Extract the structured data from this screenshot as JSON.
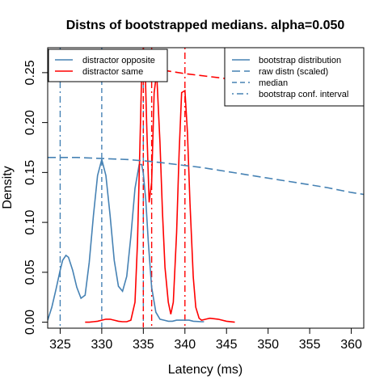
{
  "chart_data": {
    "type": "line",
    "title": "Distns of bootstrapped medians. alpha=0.050",
    "xlabel": "Latency (ms)",
    "ylabel": "Density",
    "xlim": [
      323.5,
      361.5
    ],
    "ylim": [
      -0.006,
      0.275
    ],
    "xticks": [
      "325",
      "330",
      "335",
      "340",
      "345",
      "350",
      "355",
      "360"
    ],
    "yticks": [
      "0.00",
      "0.05",
      "0.10",
      "0.15",
      "0.20",
      "0.25"
    ],
    "colors": {
      "opposite": "#4682b4",
      "same": "#ff0000"
    },
    "legend_groups": {
      "position": "top-left",
      "entries": [
        {
          "label": "distractor opposite",
          "color": "#4682b4"
        },
        {
          "label": "distractor same",
          "color": "#ff0000"
        }
      ]
    },
    "legend_styles": {
      "position": "top-right",
      "entries": [
        {
          "label": "bootstrap distribution",
          "style": "solid"
        },
        {
          "label": "raw distn (scaled)",
          "style": "longdash"
        },
        {
          "label": "median",
          "style": "dashed"
        },
        {
          "label": "bootstrap conf. interval",
          "style": "dotdash"
        }
      ]
    },
    "series": [
      {
        "name": "distractor opposite",
        "kind": "bootstrap distribution",
        "color": "#4682b4",
        "x": [
          323.5,
          324,
          324.5,
          325,
          325.3,
          325.7,
          326,
          326.5,
          327,
          327.5,
          328,
          328.5,
          329,
          329.5,
          330,
          330.5,
          331,
          331.5,
          332,
          332.5,
          333,
          333.5,
          334,
          334.5,
          334.8,
          335,
          335.3,
          335.6,
          336,
          336.5,
          337,
          337.5,
          338,
          338.5,
          339,
          339.5,
          340,
          340.5,
          341,
          342,
          342.3
        ],
        "y": [
          0.002,
          0.015,
          0.033,
          0.052,
          0.062,
          0.067,
          0.065,
          0.052,
          0.035,
          0.024,
          0.027,
          0.06,
          0.107,
          0.147,
          0.163,
          0.147,
          0.107,
          0.062,
          0.036,
          0.031,
          0.046,
          0.086,
          0.134,
          0.158,
          0.158,
          0.149,
          0.122,
          0.08,
          0.035,
          0.01,
          0.003,
          0.002,
          0.001,
          0.001,
          0.002,
          0.002,
          0.002,
          0.002,
          0.001,
          0.0005,
          0.0005
        ]
      },
      {
        "name": "distractor same",
        "kind": "bootstrap distribution",
        "color": "#ff0000",
        "x": [
          328,
          328.5,
          329,
          329.5,
          330,
          330.5,
          331,
          331.5,
          332,
          332.5,
          333,
          333.5,
          334,
          334.3,
          334.6,
          334.8,
          335,
          335.2,
          335.4,
          335.7,
          336,
          336.3,
          336.6,
          337,
          337.3,
          337.6,
          338,
          338.3,
          338.6,
          339,
          339.3,
          339.6,
          340,
          340.3,
          340.6,
          341,
          341.3,
          341.7,
          342,
          342.5,
          343,
          344,
          345,
          346
        ],
        "y": [
          0.0,
          0.0,
          0.0005,
          0.001,
          0.002,
          0.003,
          0.003,
          0.002,
          0.001,
          0.0005,
          0.0005,
          0.002,
          0.02,
          0.08,
          0.18,
          0.25,
          0.275,
          0.26,
          0.2,
          0.12,
          0.14,
          0.23,
          0.25,
          0.18,
          0.11,
          0.055,
          0.02,
          0.008,
          0.02,
          0.09,
          0.17,
          0.23,
          0.232,
          0.19,
          0.12,
          0.045,
          0.015,
          0.004,
          0.002,
          0.003,
          0.004,
          0.003,
          0.001,
          0.0
        ]
      },
      {
        "name": "distractor opposite",
        "kind": "raw distn (scaled)",
        "color": "#4682b4",
        "x": [
          323.5,
          327,
          330,
          333,
          336,
          339,
          342,
          345,
          348,
          351,
          354,
          357,
          360,
          361.5
        ],
        "y": [
          0.165,
          0.165,
          0.164,
          0.163,
          0.161,
          0.158,
          0.155,
          0.151,
          0.147,
          0.143,
          0.139,
          0.135,
          0.13,
          0.128
        ]
      },
      {
        "name": "distractor same",
        "kind": "raw distn (scaled)",
        "color": "#ff0000",
        "x": [
          334.5,
          337,
          340,
          343,
          346,
          349,
          352,
          355,
          358,
          361.5
        ],
        "y": [
          0.256,
          0.253,
          0.249,
          0.246,
          0.243,
          0.239,
          0.235,
          0.231,
          0.227,
          0.222
        ]
      }
    ],
    "medians": [
      {
        "name": "distractor opposite",
        "x": 330,
        "color": "#4682b4"
      },
      {
        "name": "distractor same",
        "x": 335,
        "color": "#ff0000"
      }
    ],
    "conf_intervals": [
      {
        "name": "distractor opposite",
        "x": [
          325,
          335
        ],
        "color": "#4682b4"
      },
      {
        "name": "distractor same",
        "x": [
          336,
          340
        ],
        "color": "#ff0000"
      }
    ]
  }
}
